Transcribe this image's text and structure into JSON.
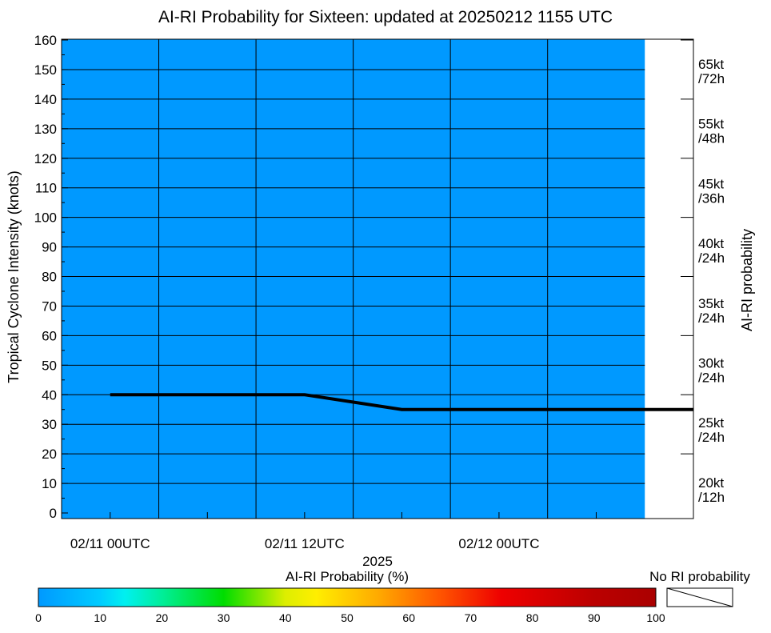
{
  "chart_data": {
    "type": "line",
    "title": "AI-RI Probability for Sixteen: updated at 20250212 1155 UTC",
    "ylabel": "Tropical Cyclone Intensity (knots)",
    "xlabel": "2025",
    "right_label": "AI-RI probability",
    "ylim": [
      0,
      160
    ],
    "y_ticks": [
      "0",
      "10",
      "20",
      "30",
      "40",
      "50",
      "60",
      "70",
      "80",
      "90",
      "100",
      "110",
      "120",
      "130",
      "140",
      "150",
      "160"
    ],
    "x_tick_labels": [
      "02/11 00UTC",
      "02/11 12UTC",
      "02/12 00UTC"
    ],
    "x_tick_hours": [
      0,
      12,
      24
    ],
    "xlim_hours": [
      -3,
      36
    ],
    "shaded_until_hours": 33,
    "background_probability_percent": 0,
    "series": [
      {
        "name": "",
        "x_hours": [
          0,
          6,
          12,
          18,
          24,
          30,
          36
        ],
        "values": [
          40,
          40,
          40,
          35,
          35,
          35,
          35
        ],
        "color": "#000000"
      }
    ],
    "right_labels": [
      {
        "speed": "65kt",
        "period": "/72h"
      },
      {
        "speed": "55kt",
        "period": "/48h"
      },
      {
        "speed": "45kt",
        "period": "/36h"
      },
      {
        "speed": "40kt",
        "period": "/24h"
      },
      {
        "speed": "35kt",
        "period": "/24h"
      },
      {
        "speed": "30kt",
        "period": "/24h"
      },
      {
        "speed": "25kt",
        "period": "/24h"
      },
      {
        "speed": "20kt",
        "period": "/12h"
      }
    ],
    "colorbar": {
      "label": "AI-RI Probability (%)",
      "ticks": [
        "0",
        "10",
        "20",
        "30",
        "40",
        "50",
        "60",
        "70",
        "80",
        "90",
        "100"
      ],
      "no_ri_label": "No RI probability"
    },
    "colors": {
      "background_field": "#0099ff",
      "grid": "#000000",
      "line": "#000000"
    }
  }
}
